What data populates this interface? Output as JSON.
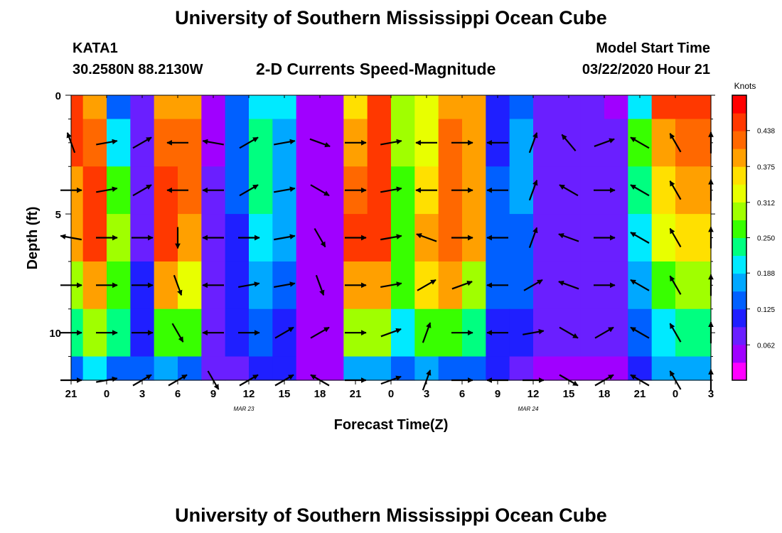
{
  "header": {
    "title": "University of Southern Mississippi Ocean Cube",
    "station": "KATA1",
    "coords": "30.2580N 88.2130W",
    "subtitle": "2-D Currents Speed-Magnitude",
    "model_start_label": "Model Start Time",
    "model_start_date": "03/22/2020 Hour 21"
  },
  "footer": {
    "title": "University of Southern Mississippi Ocean Cube"
  },
  "chart_data": {
    "type": "heatmap",
    "xlabel": "Forecast Time(Z)",
    "ylabel": "Depth (ft)",
    "x_ticks": [
      "21",
      "0",
      "3",
      "6",
      "9",
      "12",
      "15",
      "18",
      "21",
      "0",
      "3",
      "6",
      "9",
      "12",
      "15",
      "18",
      "21",
      "0",
      "3"
    ],
    "x_range_hours": [
      0,
      54
    ],
    "date_labels": [
      {
        "text": "MAR  23",
        "hour": 15
      },
      {
        "text": "MAR  24",
        "hour": 39
      }
    ],
    "y_ticks": [
      0,
      5,
      10
    ],
    "y_range": [
      0,
      12
    ],
    "colorbar": {
      "title": "Knots",
      "ticks": [
        0.062,
        0.125,
        0.188,
        0.25,
        0.312,
        0.375,
        0.438
      ],
      "range": [
        0,
        0.5
      ]
    },
    "colors": [
      "#ff00ff",
      "#a000ff",
      "#6a1fff",
      "#1f1fff",
      "#0060ff",
      "#00a8ff",
      "#00eaff",
      "#00ff80",
      "#38ff00",
      "#a0ff00",
      "#e8ff00",
      "#ffe000",
      "#ffa000",
      "#ff6800",
      "#ff3800",
      "#ff0000"
    ],
    "speed_time_hours": [
      0,
      2,
      4,
      6,
      8,
      10,
      12,
      14,
      16,
      18,
      20,
      22,
      24,
      26,
      28,
      30,
      32,
      34,
      36,
      38,
      40,
      42,
      44,
      46,
      48,
      50,
      52,
      54
    ],
    "speed_depth_ft": [
      0,
      2,
      4,
      6,
      8,
      10,
      12
    ],
    "speed_knots": [
      [
        0.45,
        0.4,
        0.13,
        0.09,
        0.4,
        0.4,
        0.06,
        0.15,
        0.21,
        0.2,
        0.04,
        0.04,
        0.36,
        0.45,
        0.3,
        0.32,
        0.4,
        0.4,
        0.1,
        0.15,
        0.09,
        0.09,
        0.08,
        0.06,
        0.2,
        0.45,
        0.45,
        0.45
      ],
      [
        0.44,
        0.42,
        0.2,
        0.08,
        0.42,
        0.42,
        0.06,
        0.14,
        0.22,
        0.18,
        0.04,
        0.04,
        0.4,
        0.46,
        0.3,
        0.34,
        0.42,
        0.4,
        0.12,
        0.16,
        0.08,
        0.09,
        0.08,
        0.07,
        0.25,
        0.4,
        0.42,
        0.42
      ],
      [
        0.4,
        0.44,
        0.28,
        0.08,
        0.44,
        0.42,
        0.07,
        0.13,
        0.22,
        0.17,
        0.05,
        0.05,
        0.42,
        0.46,
        0.28,
        0.35,
        0.42,
        0.4,
        0.13,
        0.16,
        0.08,
        0.09,
        0.09,
        0.07,
        0.22,
        0.35,
        0.4,
        0.4
      ],
      [
        0.38,
        0.44,
        0.3,
        0.09,
        0.44,
        0.4,
        0.07,
        0.12,
        0.2,
        0.16,
        0.05,
        0.05,
        0.44,
        0.45,
        0.28,
        0.38,
        0.42,
        0.38,
        0.14,
        0.15,
        0.08,
        0.09,
        0.09,
        0.07,
        0.2,
        0.32,
        0.36,
        0.36
      ],
      [
        0.3,
        0.4,
        0.28,
        0.1,
        0.4,
        0.34,
        0.08,
        0.12,
        0.18,
        0.14,
        0.05,
        0.05,
        0.4,
        0.4,
        0.25,
        0.36,
        0.38,
        0.3,
        0.13,
        0.14,
        0.08,
        0.09,
        0.09,
        0.07,
        0.18,
        0.25,
        0.3,
        0.3
      ],
      [
        0.22,
        0.3,
        0.22,
        0.12,
        0.28,
        0.25,
        0.08,
        0.11,
        0.15,
        0.12,
        0.04,
        0.05,
        0.3,
        0.3,
        0.2,
        0.28,
        0.28,
        0.22,
        0.12,
        0.12,
        0.07,
        0.08,
        0.08,
        0.07,
        0.15,
        0.2,
        0.24,
        0.24
      ],
      [
        0.15,
        0.2,
        0.14,
        0.13,
        0.16,
        0.14,
        0.08,
        0.09,
        0.11,
        0.1,
        0.04,
        0.05,
        0.18,
        0.18,
        0.15,
        0.17,
        0.15,
        0.14,
        0.1,
        0.09,
        0.06,
        0.06,
        0.06,
        0.06,
        0.1,
        0.16,
        0.18,
        0.18
      ]
    ],
    "vector_time_hours": [
      0,
      3,
      6,
      9,
      12,
      15,
      18,
      21,
      24,
      27,
      30,
      33,
      36,
      39,
      42,
      45,
      48,
      51,
      54
    ],
    "vector_depth_ft": [
      2,
      4,
      6,
      8,
      10,
      12
    ],
    "vector_direction_deg": [
      [
        340,
        80,
        60,
        270,
        280,
        60,
        80,
        110,
        90,
        80,
        270,
        90,
        270,
        20,
        320,
        70,
        300,
        330,
        0
      ],
      [
        90,
        80,
        60,
        270,
        270,
        60,
        80,
        120,
        90,
        80,
        270,
        90,
        270,
        20,
        300,
        90,
        300,
        330,
        0
      ],
      [
        280,
        90,
        90,
        180,
        270,
        90,
        80,
        150,
        90,
        80,
        290,
        90,
        270,
        20,
        290,
        90,
        300,
        330,
        0
      ],
      [
        90,
        90,
        90,
        160,
        270,
        80,
        80,
        160,
        90,
        80,
        60,
        70,
        270,
        60,
        290,
        90,
        300,
        330,
        0
      ],
      [
        90,
        90,
        90,
        150,
        270,
        90,
        60,
        60,
        90,
        70,
        20,
        90,
        270,
        80,
        120,
        60,
        300,
        330,
        0
      ],
      [
        90,
        80,
        60,
        60,
        150,
        60,
        60,
        300,
        90,
        70,
        20,
        90,
        270,
        90,
        120,
        60,
        300,
        330,
        0
      ]
    ]
  }
}
